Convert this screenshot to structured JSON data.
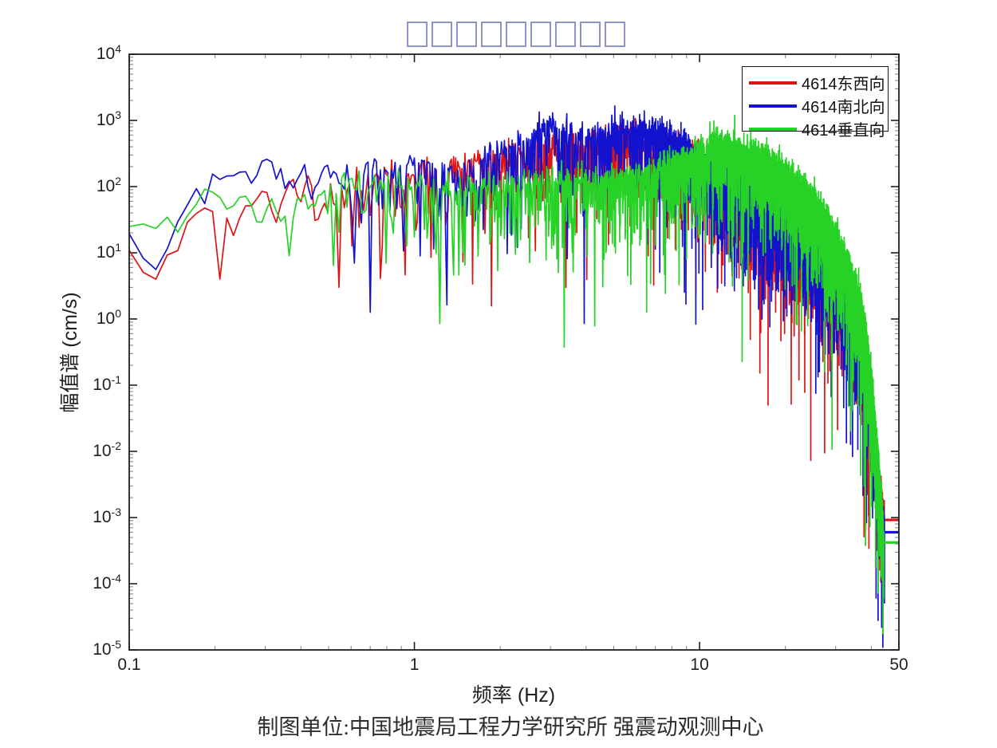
{
  "title": {
    "text": "□□□□□□□□□",
    "note": "title glyphs missing in source image (9 tofu boxes)",
    "box_count": 9,
    "box_color": "#9093cb"
  },
  "caption": {
    "text": "制图单位:中国地震局工程力学研究所 强震动观测中心"
  },
  "chart_data": {
    "type": "line",
    "title": "□□□□□□□□□",
    "xlabel": "频率 (Hz)",
    "ylabel": "幅值谱 (cm/s)",
    "grid": false,
    "legend_position": "top-right",
    "x_axis": {
      "label": "频率 (Hz)",
      "scale": "log",
      "min": 0.1,
      "max": 50,
      "major_ticks": [
        0.1,
        1,
        10,
        50
      ],
      "tick_labels": [
        "0.1",
        "1",
        "10",
        "50"
      ]
    },
    "y_axis": {
      "label": "幅值谱 (cm/s)",
      "scale": "log",
      "min": 1e-05,
      "max": 10000.0,
      "tick_exponents": [
        4,
        3,
        2,
        1,
        0,
        -1,
        -2,
        -3,
        -4,
        -5
      ]
    },
    "sampling_hz_step": 0.012,
    "series": [
      {
        "id": "ew",
        "name": "4614东西向",
        "color": "#dd1414",
        "seed": 11,
        "envelope_points": [
          [
            0.1,
            20
          ],
          [
            0.115,
            13
          ],
          [
            0.13,
            30
          ],
          [
            0.15,
            60
          ],
          [
            0.17,
            110
          ],
          [
            0.2,
            60
          ],
          [
            0.23,
            40
          ],
          [
            0.27,
            90
          ],
          [
            0.32,
            60
          ],
          [
            0.38,
            120
          ],
          [
            0.45,
            150
          ],
          [
            0.55,
            70
          ],
          [
            0.65,
            120
          ],
          [
            0.8,
            130
          ],
          [
            1.0,
            130
          ],
          [
            1.3,
            160
          ],
          [
            1.7,
            220
          ],
          [
            2.2,
            280
          ],
          [
            3,
            400
          ],
          [
            4,
            350
          ],
          [
            5,
            420
          ],
          [
            6,
            480
          ],
          [
            7,
            420
          ],
          [
            8,
            380
          ],
          [
            9,
            300
          ],
          [
            10,
            220
          ],
          [
            12,
            130
          ],
          [
            15,
            75
          ],
          [
            18,
            45
          ],
          [
            22,
            22
          ],
          [
            26,
            11
          ],
          [
            30,
            5.5
          ],
          [
            33,
            2.8
          ],
          [
            36,
            1.1
          ],
          [
            38,
            0.35
          ],
          [
            40,
            0.06
          ],
          [
            41.5,
            0.012
          ],
          [
            43,
            0.0022
          ],
          [
            44.5,
            0.00092
          ],
          [
            50,
            0.00092
          ]
        ],
        "dips": [
          [
            0.205,
            4
          ],
          [
            0.55,
            3
          ],
          [
            3.4,
            3
          ],
          [
            6.6,
            9
          ],
          [
            9.7,
            2.3
          ],
          [
            13,
            4.5
          ],
          [
            20,
            2
          ],
          [
            26,
            0.9
          ],
          [
            43.2,
            0.00015
          ]
        ],
        "tail_start_hz": 44.5,
        "tail_value": 0.00092
      },
      {
        "id": "ns",
        "name": "4614南北向",
        "color": "#1212cf",
        "seed": 23,
        "envelope_points": [
          [
            0.1,
            18
          ],
          [
            0.11,
            11
          ],
          [
            0.125,
            6
          ],
          [
            0.14,
            12
          ],
          [
            0.17,
            60
          ],
          [
            0.2,
            230
          ],
          [
            0.23,
            160
          ],
          [
            0.27,
            200
          ],
          [
            0.3,
            230
          ],
          [
            0.35,
            150
          ],
          [
            0.4,
            140
          ],
          [
            0.5,
            160
          ],
          [
            0.6,
            70
          ],
          [
            0.7,
            180
          ],
          [
            0.85,
            160
          ],
          [
            1.0,
            210
          ],
          [
            1.2,
            160
          ],
          [
            1.5,
            130
          ],
          [
            1.9,
            260
          ],
          [
            2.4,
            420
          ],
          [
            3,
            750
          ],
          [
            3.5,
            550
          ],
          [
            4,
            480
          ],
          [
            5,
            560
          ],
          [
            6,
            700
          ],
          [
            7,
            620
          ],
          [
            8,
            520
          ],
          [
            9,
            400
          ],
          [
            10,
            260
          ],
          [
            12,
            130
          ],
          [
            15,
            65
          ],
          [
            18,
            40
          ],
          [
            22,
            20
          ],
          [
            26,
            10
          ],
          [
            30,
            5
          ],
          [
            33,
            2.5
          ],
          [
            36,
            1
          ],
          [
            38,
            0.3
          ],
          [
            40,
            0.05
          ],
          [
            41.5,
            0.01
          ],
          [
            43,
            0.0018
          ],
          [
            44.5,
            0.0006
          ],
          [
            50,
            0.0006
          ]
        ],
        "dips": [
          [
            0.125,
            5.6
          ],
          [
            0.62,
            7
          ],
          [
            1.05,
            9
          ],
          [
            2.3,
            12
          ],
          [
            7.6,
            14
          ],
          [
            11,
            6
          ],
          [
            21,
            1.2
          ],
          [
            43.5,
            2.2e-05
          ]
        ],
        "tail_start_hz": 44.5,
        "tail_value": 0.0006
      },
      {
        "id": "ud",
        "name": "4614垂直向",
        "color": "#27d227",
        "seed": 37,
        "envelope_points": [
          [
            0.1,
            20
          ],
          [
            0.12,
            26
          ],
          [
            0.15,
            45
          ],
          [
            0.18,
            90
          ],
          [
            0.22,
            55
          ],
          [
            0.26,
            110
          ],
          [
            0.3,
            130
          ],
          [
            0.36,
            45
          ],
          [
            0.45,
            80
          ],
          [
            0.55,
            100
          ],
          [
            0.7,
            110
          ],
          [
            0.85,
            95
          ],
          [
            1.0,
            90
          ],
          [
            1.25,
            65
          ],
          [
            1.6,
            95
          ],
          [
            2.0,
            90
          ],
          [
            2.6,
            105
          ],
          [
            3.3,
            115
          ],
          [
            4,
            100
          ],
          [
            5,
            115
          ],
          [
            6,
            130
          ],
          [
            7,
            150
          ],
          [
            8,
            190
          ],
          [
            9,
            260
          ],
          [
            10,
            340
          ],
          [
            11,
            420
          ],
          [
            12,
            390
          ],
          [
            14,
            320
          ],
          [
            16,
            270
          ],
          [
            18,
            220
          ],
          [
            20,
            160
          ],
          [
            23,
            90
          ],
          [
            26,
            45
          ],
          [
            30,
            16
          ],
          [
            33,
            6.5
          ],
          [
            36,
            2.2
          ],
          [
            38,
            0.7
          ],
          [
            40,
            0.12
          ],
          [
            41.5,
            0.02
          ],
          [
            43,
            0.003
          ],
          [
            44.3,
            0.00042
          ],
          [
            50,
            0.00042
          ]
        ],
        "dips": [
          [
            0.36,
            9
          ],
          [
            0.8,
            7
          ],
          [
            1.5,
            6.5
          ],
          [
            3.2,
            5
          ],
          [
            5.6,
            4.5
          ],
          [
            9,
            8
          ],
          [
            14,
            7
          ],
          [
            24,
            2
          ],
          [
            43.8,
            0.00011
          ]
        ],
        "tail_start_hz": 44.3,
        "tail_value": 0.00042
      }
    ],
    "legend_entries": [
      "4614东西向",
      "4614南北向",
      "4614垂直向"
    ],
    "frame_color": "#1f1f1f",
    "minor_tick_color": "#8a8a8a"
  }
}
